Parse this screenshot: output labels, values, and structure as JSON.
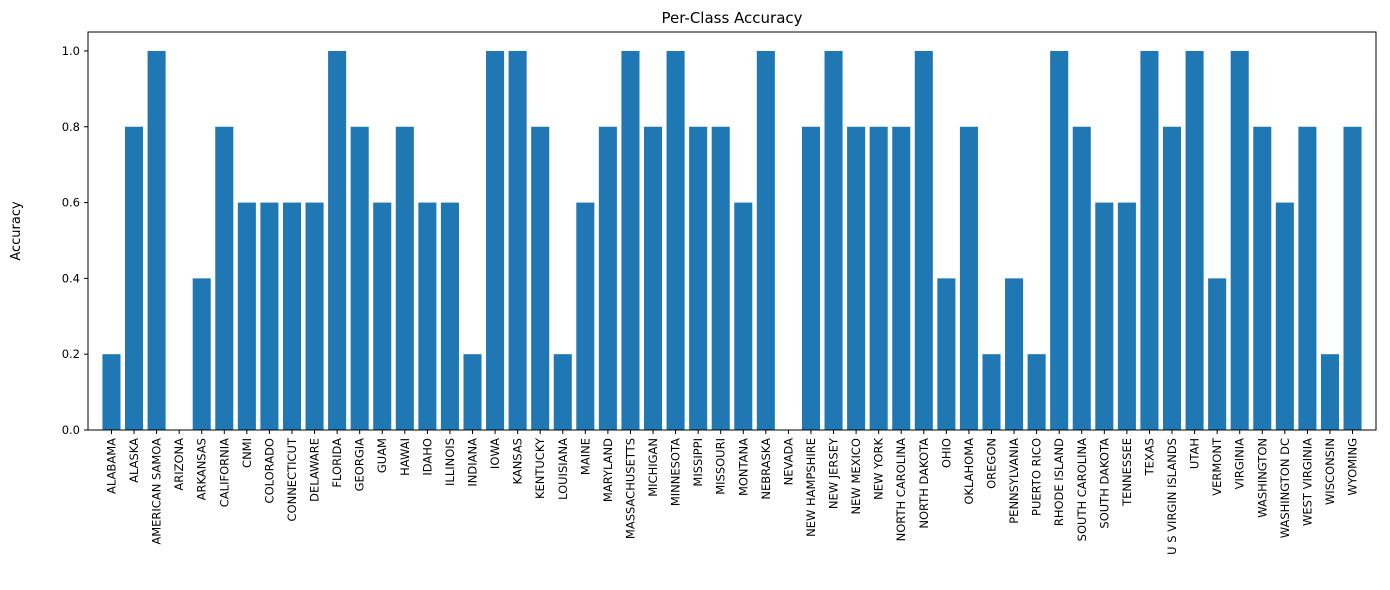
{
  "chart_data": {
    "type": "bar",
    "title": "Per-Class Accuracy",
    "xlabel": "",
    "ylabel": "Accuracy",
    "ylim": [
      0,
      1.05
    ],
    "yticks": [
      0.0,
      0.2,
      0.4,
      0.6,
      0.8,
      1.0
    ],
    "ytick_labels": [
      "0.0",
      "0.2",
      "0.4",
      "0.6",
      "0.8",
      "1.0"
    ],
    "bar_color": "#1f77b4",
    "grid": false,
    "categories": [
      "ALABAMA",
      "ALASKA",
      "AMERICAN SAMOA",
      "ARIZONA",
      "ARKANSAS",
      "CALIFORNIA",
      "CNMI",
      "COLORADO",
      "CONNECTICUT",
      "DELAWARE",
      "FLORIDA",
      "GEORGIA",
      "GUAM",
      "HAWAI",
      "IDAHO",
      "ILLINOIS",
      "INDIANA",
      "IOWA",
      "KANSAS",
      "KENTUCKY",
      "LOUISIANA",
      "MAINE",
      "MARYLAND",
      "MASSACHUSETTS",
      "MICHIGAN",
      "MINNESOTA",
      "MISSIPPI",
      "MISSOURI",
      "MONTANA",
      "NEBRASKA",
      "NEVADA",
      "NEW HAMPSHIRE",
      "NEW JERSEY",
      "NEW MEXICO",
      "NEW YORK",
      "NORTH CAROLINA",
      "NORTH DAKOTA",
      "OHIO",
      "OKLAHOMA",
      "OREGON",
      "PENNSYLVANIA",
      "PUERTO RICO",
      "RHODE ISLAND",
      "SOUTH CAROLINA",
      "SOUTH DAKOTA",
      "TENNESSEE",
      "TEXAS",
      "U S VIRGIN ISLANDS",
      "UTAH",
      "VERMONT",
      "VIRGINIA",
      "WASHINGTON",
      "WASHINGTON DC",
      "WEST VIRGINIA",
      "WISCONSIN",
      "WYOMING"
    ],
    "values": [
      0.2,
      0.8,
      1.0,
      0.0,
      0.4,
      0.8,
      0.6,
      0.6,
      0.6,
      0.6,
      1.0,
      0.8,
      0.6,
      0.8,
      0.6,
      0.6,
      0.2,
      1.0,
      1.0,
      0.8,
      0.2,
      0.6,
      0.8,
      1.0,
      0.8,
      1.0,
      0.8,
      0.8,
      0.6,
      1.0,
      0.0,
      0.8,
      1.0,
      0.8,
      0.8,
      0.8,
      1.0,
      0.4,
      0.8,
      0.2,
      0.4,
      0.2,
      1.0,
      0.8,
      0.6,
      0.6,
      1.0,
      0.8,
      1.0,
      0.4,
      1.0,
      0.8,
      0.6,
      0.8,
      0.2,
      0.8
    ]
  }
}
